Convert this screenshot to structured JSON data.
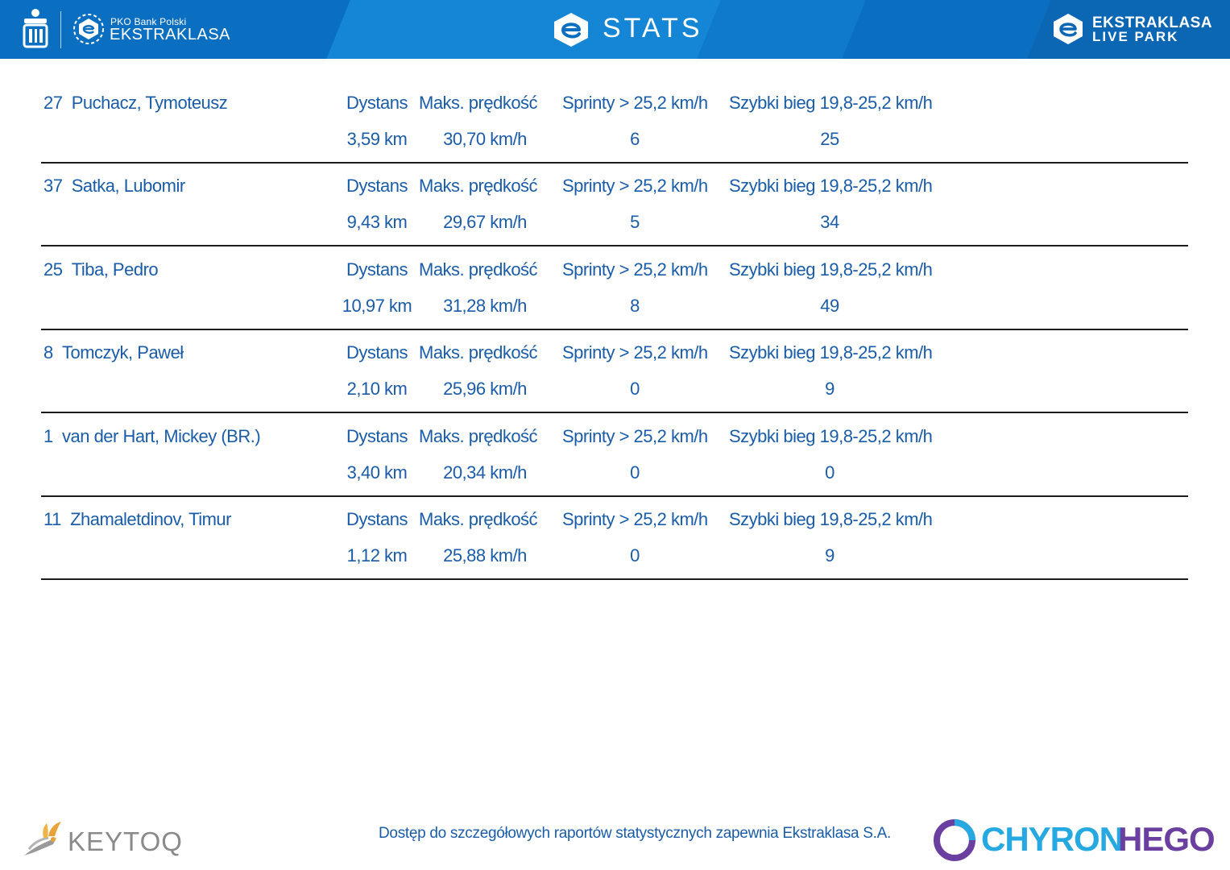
{
  "header": {
    "brand_small": "PKO Bank Polski",
    "brand_big": "EKSTRAKLASA",
    "title": "STATS",
    "live_park_line1": "EKSTRAKLASA",
    "live_park_line2": "LIVE PARK",
    "colors": {
      "bar": "#0a6fc0",
      "text": "#ffffff"
    }
  },
  "column_headers": [
    "Dystans",
    "Maks. prędkość",
    "Sprinty > 25,2 km/h",
    "Szybki bieg 19,8-25,2 km/h"
  ],
  "players": [
    {
      "number": "27",
      "name": "Puchacz, Tymoteusz",
      "dystans": "3,59 km",
      "maks_predkosc": "30,70 km/h",
      "sprinty": "6",
      "szybki_bieg": "25"
    },
    {
      "number": "37",
      "name": "Satka, Lubomir",
      "dystans": "9,43 km",
      "maks_predkosc": "29,67 km/h",
      "sprinty": "5",
      "szybki_bieg": "34"
    },
    {
      "number": "25",
      "name": "Tiba, Pedro",
      "dystans": "10,97 km",
      "maks_predkosc": "31,28 km/h",
      "sprinty": "8",
      "szybki_bieg": "49"
    },
    {
      "number": "8",
      "name": "Tomczyk, Paweł",
      "dystans": "2,10 km",
      "maks_predkosc": "25,96 km/h",
      "sprinty": "0",
      "szybki_bieg": "9"
    },
    {
      "number": "1",
      "name": "van der Hart, Mickey (BR.)",
      "dystans": "3,40 km",
      "maks_predkosc": "20,34 km/h",
      "sprinty": "0",
      "szybki_bieg": "0"
    },
    {
      "number": "11",
      "name": "Zhamaletdinov, Timur",
      "dystans": "1,12 km",
      "maks_predkosc": "25,88 km/h",
      "sprinty": "0",
      "szybki_bieg": "9"
    }
  ],
  "footer": {
    "note": "Dostęp do szczegółowych raportów statystycznych zapewnia Ekstraklasa S.A.",
    "keytoq": "KEYTOQ",
    "chyron_a": "CHYRON",
    "chyron_b": "HEGO"
  },
  "colors": {
    "text_blue": "#1a5ca8",
    "rule": "#1c1c1c",
    "chyron_blue": "#25a9e0",
    "chyron_purple": "#6a3fa0"
  }
}
